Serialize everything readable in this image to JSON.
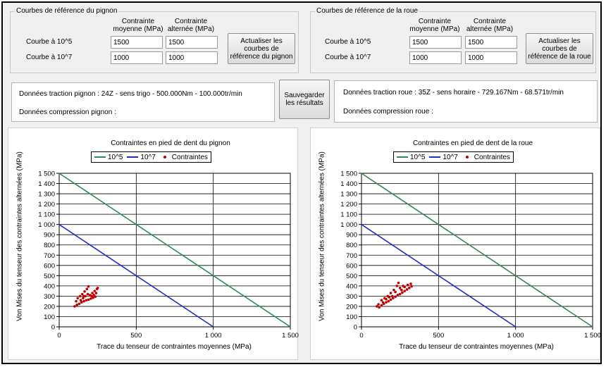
{
  "pignon_box": {
    "title": "Courbes de référence du pignon",
    "col_moyenne": "Contrainte moyenne (MPa)",
    "col_alternee": "Contrainte alternée (MPa)",
    "row1_label": "Courbe à 10^5",
    "row2_label": "Courbe à 10^7",
    "row1_moyenne": "1500",
    "row1_alternee": "1500",
    "row2_moyenne": "1000",
    "row2_alternee": "1000",
    "update_button": "Actualiser les courbes de référence du pignon"
  },
  "roue_box": {
    "title": "Courbes de référence de la roue",
    "col_moyenne": "Contrainte moyenne (MPa)",
    "col_alternee": "Contrainte alternée (MPa)",
    "row1_label": "Courbe à 10^5",
    "row2_label": "Courbe à 10^7",
    "row1_moyenne": "1500",
    "row1_alternee": "1500",
    "row2_moyenne": "1000",
    "row2_alternee": "1000",
    "update_button": "Actualiser les courbes de référence de la roue"
  },
  "pignon_info": {
    "traction": "Données traction pignon : 24Z - sens trigo - 500.000Nm - 100.000tr/min",
    "compression": "Données compression pignon :"
  },
  "save_button": "Sauvegarder les résultats",
  "roue_info": {
    "traction": "Données traction roue : 35Z - sens horaire - 729.167Nm - 68.571tr/min",
    "compression": "Données compression roue :"
  },
  "colors": {
    "green": "#2e8b57",
    "blue": "#1f2fbf",
    "red": "#c00000"
  },
  "chart_data": [
    {
      "type": "line",
      "title": "Contraintes en pied de dent du pignon",
      "xlabel": "Trace du tenseur de contraintes moyennes (MPa)",
      "ylabel": "Von Mises du tenseur des contraintes alternées (MPa)",
      "xlim": [
        0,
        1500
      ],
      "ylim": [
        0,
        1500
      ],
      "x_ticks": [
        "0",
        "500",
        "1 000",
        "1 500"
      ],
      "y_ticks": [
        "0",
        "100",
        "200",
        "300",
        "400",
        "500",
        "600",
        "700",
        "800",
        "900",
        "1 000",
        "1 100",
        "1 200",
        "1 300",
        "1 400",
        "1 500"
      ],
      "legend": [
        "10^5",
        "10^7",
        "Contraintes"
      ],
      "series": [
        {
          "name": "10^5",
          "points": [
            [
              0,
              1500
            ],
            [
              1500,
              0
            ]
          ]
        },
        {
          "name": "10^7",
          "points": [
            [
              0,
              1000
            ],
            [
              1000,
              0
            ]
          ]
        },
        {
          "name": "Contraintes",
          "points": [
            [
              100,
              200
            ],
            [
              115,
              215
            ],
            [
              130,
              225
            ],
            [
              145,
              240
            ],
            [
              160,
              250
            ],
            [
              175,
              260
            ],
            [
              190,
              265
            ],
            [
              205,
              275
            ],
            [
              220,
              285
            ],
            [
              235,
              295
            ],
            [
              120,
              280
            ],
            [
              135,
              300
            ],
            [
              150,
              320
            ],
            [
              165,
              345
            ],
            [
              180,
              370
            ],
            [
              190,
              395
            ],
            [
              200,
              310
            ],
            [
              215,
              330
            ],
            [
              230,
              350
            ],
            [
              245,
              370
            ],
            [
              140,
              260
            ],
            [
              155,
              280
            ],
            [
              170,
              300
            ],
            [
              185,
              320
            ],
            [
              210,
              300
            ],
            [
              225,
              310
            ],
            [
              240,
              330
            ],
            [
              250,
              380
            ],
            [
              110,
              250
            ],
            [
              160,
              300
            ]
          ]
        }
      ]
    },
    {
      "type": "line",
      "title": "Contraintes en pied de dent de la roue",
      "xlabel": "Trace du tenseur de contraintes moyennes (MPa)",
      "ylabel": "Von Mises du tenseur des contraintes alternées (MPa)",
      "xlim": [
        0,
        1500
      ],
      "ylim": [
        0,
        1500
      ],
      "x_ticks": [
        "0",
        "500",
        "1 000",
        "1 500"
      ],
      "y_ticks": [
        "0",
        "100",
        "200",
        "300",
        "400",
        "500",
        "600",
        "700",
        "800",
        "900",
        "1 000",
        "1 100",
        "1 200",
        "1 300",
        "1 400",
        "1 500"
      ],
      "legend": [
        "10^5",
        "10^7",
        "Contraintes"
      ],
      "series": [
        {
          "name": "10^5",
          "points": [
            [
              0,
              1500
            ],
            [
              1500,
              0
            ]
          ]
        },
        {
          "name": "10^7",
          "points": [
            [
              0,
              1000
            ],
            [
              1000,
              0
            ]
          ]
        },
        {
          "name": "Contraintes",
          "points": [
            [
              100,
              200
            ],
            [
              115,
              190
            ],
            [
              130,
              210
            ],
            [
              145,
              225
            ],
            [
              160,
              240
            ],
            [
              175,
              250
            ],
            [
              190,
              265
            ],
            [
              205,
              280
            ],
            [
              220,
              295
            ],
            [
              235,
              310
            ],
            [
              250,
              320
            ],
            [
              265,
              335
            ],
            [
              280,
              350
            ],
            [
              295,
              365
            ],
            [
              310,
              380
            ],
            [
              325,
              395
            ],
            [
              130,
              260
            ],
            [
              150,
              280
            ],
            [
              170,
              300
            ],
            [
              190,
              330
            ],
            [
              210,
              360
            ],
            [
              230,
              400
            ],
            [
              240,
              430
            ],
            [
              200,
              300
            ],
            [
              260,
              360
            ],
            [
              280,
              390
            ],
            [
              300,
              410
            ],
            [
              320,
              420
            ],
            [
              140,
              240
            ],
            [
              180,
              290
            ],
            [
              220,
              340
            ],
            [
              250,
              380
            ],
            [
              270,
              400
            ],
            [
              160,
              270
            ],
            [
              110,
              220
            ]
          ]
        }
      ]
    }
  ]
}
